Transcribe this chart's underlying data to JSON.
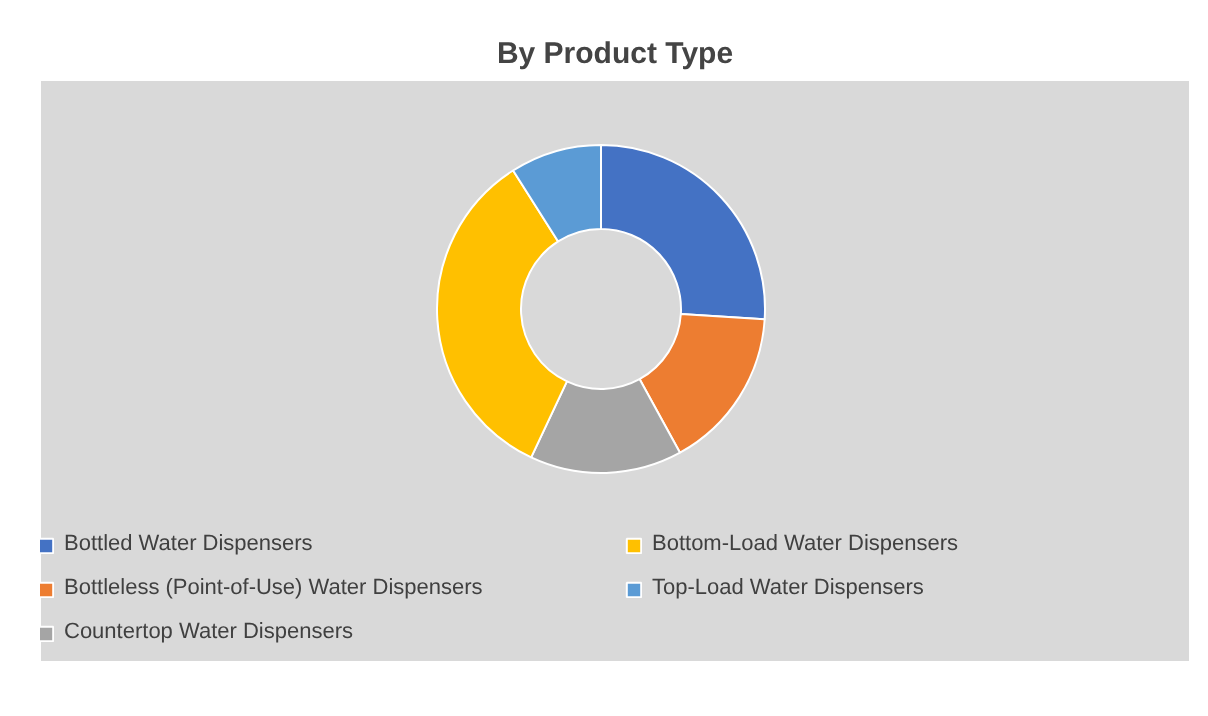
{
  "chart_data": {
    "type": "donut",
    "title": "By Product Type",
    "categories": [
      "Bottled Water Dispensers",
      "Bottleless (Point-of-Use) Water Dispensers",
      "Countertop Water Dispensers",
      "Bottom-Load Water Dispensers",
      "Top-Load Water Dispensers"
    ],
    "values": [
      26,
      16,
      15,
      34,
      9
    ],
    "colors": [
      "#4472c4",
      "#ed7d31",
      "#a5a5a5",
      "#ffc000",
      "#5b9bd5"
    ],
    "legend": "bottom"
  }
}
